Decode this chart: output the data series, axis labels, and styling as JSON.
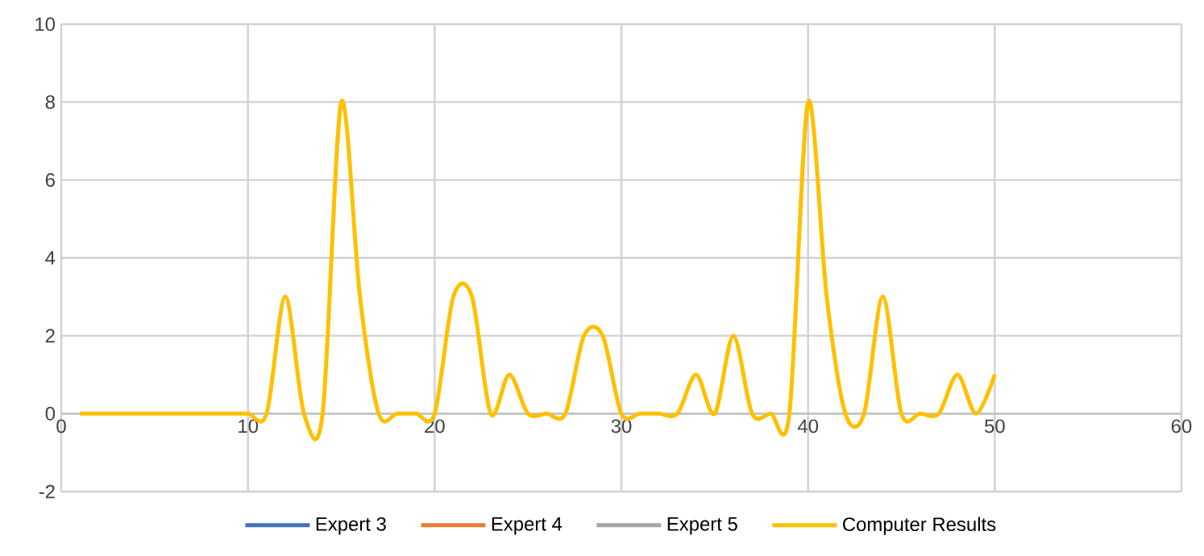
{
  "chart_data": {
    "type": "line",
    "x": [
      1,
      2,
      3,
      4,
      5,
      6,
      7,
      8,
      9,
      10,
      11,
      12,
      13,
      14,
      15,
      16,
      17,
      18,
      19,
      20,
      21,
      22,
      23,
      24,
      25,
      26,
      27,
      28,
      29,
      30,
      31,
      32,
      33,
      34,
      35,
      36,
      37,
      38,
      39,
      40,
      41,
      42,
      43,
      44,
      45,
      46,
      47,
      48,
      49,
      50
    ],
    "series": [
      {
        "name": "Expert 3",
        "color": "#4472c4",
        "values": [
          null,
          null,
          null,
          null,
          null,
          null,
          null,
          null,
          null,
          null,
          null,
          null,
          null,
          null,
          null,
          null,
          null,
          null,
          null,
          null,
          null,
          null,
          null,
          null,
          null,
          null,
          null,
          null,
          null,
          null,
          null,
          null,
          null,
          null,
          null,
          null,
          null,
          null,
          null,
          null,
          null,
          null,
          null,
          null,
          null,
          null,
          null,
          null,
          null,
          null
        ]
      },
      {
        "name": "Expert 4",
        "color": "#ed7d31",
        "values": [
          null,
          null,
          null,
          null,
          null,
          null,
          null,
          null,
          null,
          null,
          null,
          null,
          null,
          null,
          null,
          null,
          null,
          null,
          null,
          null,
          null,
          null,
          null,
          null,
          null,
          null,
          null,
          null,
          null,
          null,
          null,
          null,
          null,
          null,
          null,
          null,
          null,
          null,
          null,
          null,
          null,
          null,
          null,
          null,
          null,
          null,
          null,
          null,
          null,
          null
        ]
      },
      {
        "name": "Expert 5",
        "color": "#a5a5a5",
        "values": [
          null,
          null,
          null,
          null,
          null,
          null,
          null,
          null,
          null,
          null,
          null,
          null,
          null,
          null,
          null,
          null,
          null,
          null,
          null,
          null,
          null,
          null,
          null,
          null,
          null,
          null,
          null,
          null,
          null,
          null,
          null,
          null,
          null,
          null,
          null,
          null,
          null,
          null,
          null,
          null,
          null,
          null,
          null,
          null,
          null,
          null,
          null,
          null,
          null,
          null
        ]
      },
      {
        "name": "Computer Results",
        "color": "#ffc000",
        "values": [
          0,
          0,
          0,
          0,
          0,
          0,
          0,
          0,
          0,
          0,
          0,
          3,
          0,
          0,
          8,
          3,
          0,
          0,
          0,
          0,
          3,
          3,
          0,
          1,
          0,
          0,
          0,
          2,
          2,
          0,
          0,
          0,
          0,
          1,
          0,
          2,
          0,
          0,
          0,
          8,
          3,
          0,
          0,
          3,
          0,
          0,
          0,
          1,
          0,
          1
        ]
      }
    ],
    "xlim": [
      0,
      60
    ],
    "xticks": [
      0,
      10,
      20,
      30,
      40,
      50,
      60
    ],
    "ylim": [
      -2,
      10
    ],
    "yticks": [
      -2,
      0,
      2,
      4,
      6,
      8,
      10
    ],
    "grid": true,
    "legend": "bottom",
    "marker": "none",
    "line_style": "solid"
  }
}
